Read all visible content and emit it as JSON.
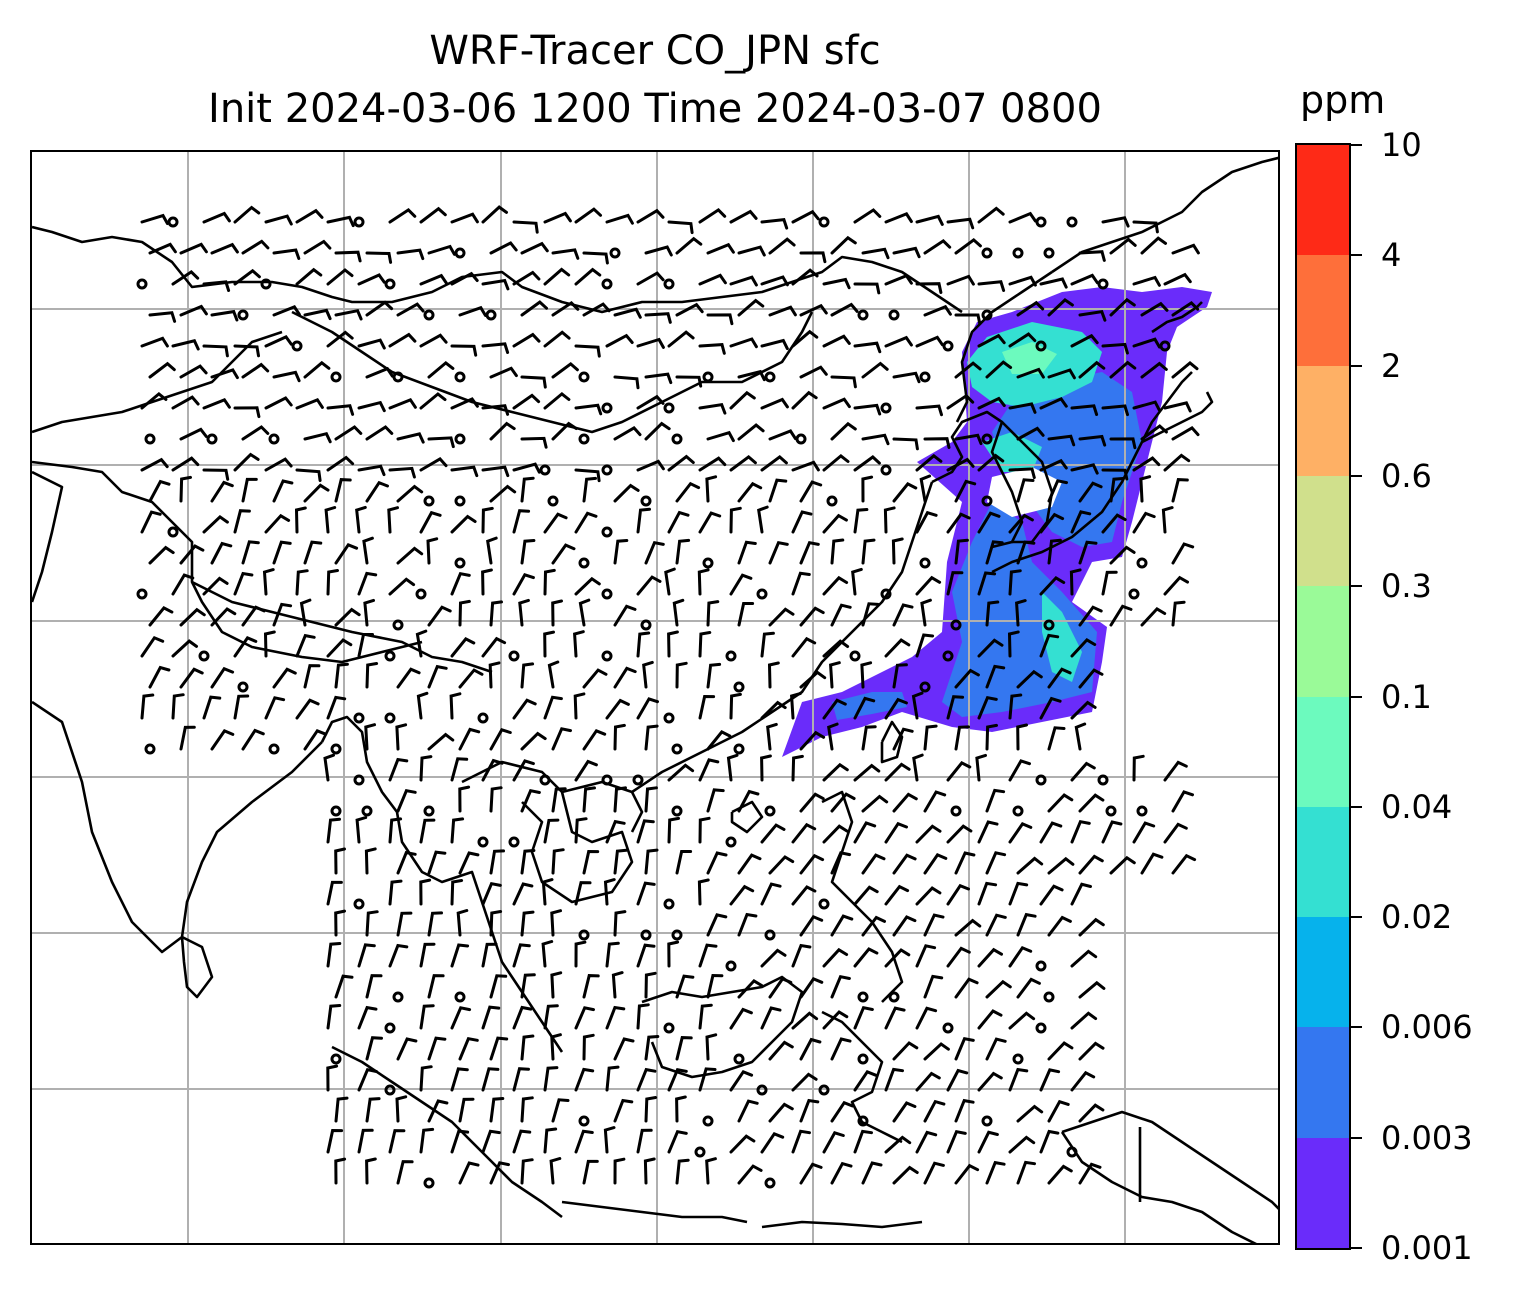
{
  "title_line1": "WRF-Tracer CO_JPN sfc",
  "title_line2": "Init 2024-03-06 1200 Time 2024-03-07 0800",
  "colorbar": {
    "unit": "ppm",
    "levels": [
      "0.001",
      "0.003",
      "0.006",
      "0.02",
      "0.04",
      "0.1",
      "0.3",
      "0.6",
      "2",
      "4",
      "10"
    ],
    "colors": [
      "#6a2cfa",
      "#3477f0",
      "#06b2ec",
      "#34e0d2",
      "#6cfabe",
      "#9afa98",
      "#d0e08c",
      "#feb065",
      "#fe6f3a",
      "#fe2a17"
    ]
  },
  "map": {
    "plume_colors": {
      "low": "#6a2cfa",
      "mid": "#3477f0",
      "high": "#34e0d2",
      "peak": "#6cfabe"
    },
    "coastline_color": "#000000",
    "grid_color": "#b0b0b0"
  }
}
